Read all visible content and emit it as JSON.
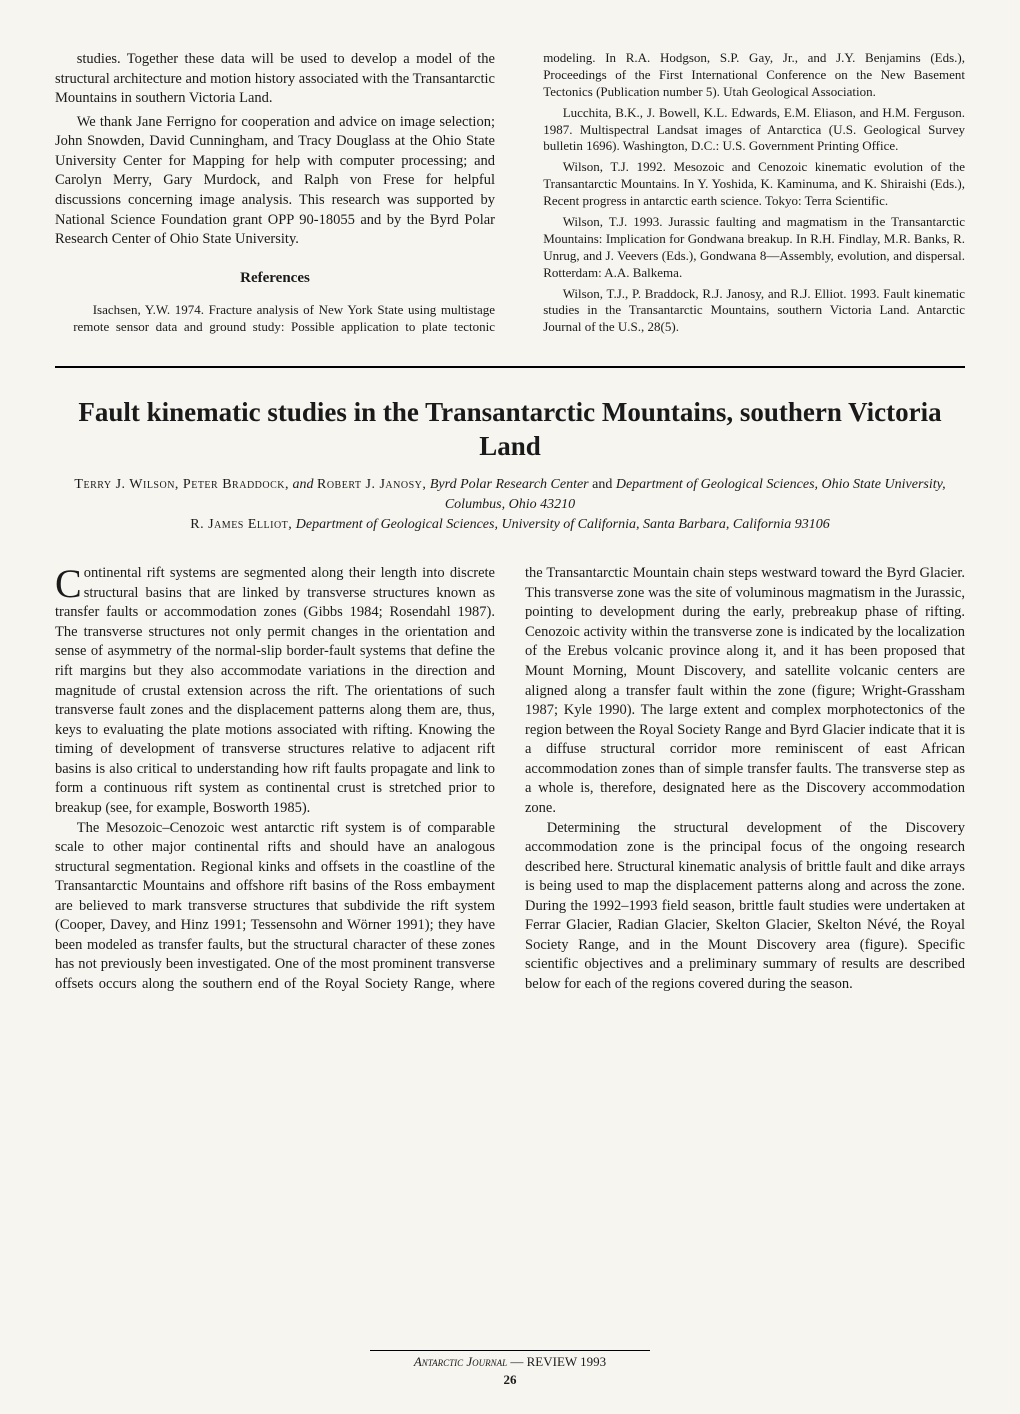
{
  "top_section": {
    "p1": "studies. Together these data will be used to develop a model of the structural architecture and motion history associated with the Transantarctic Mountains in southern Victoria Land.",
    "p2": "We thank Jane Ferrigno for cooperation and advice on image selection; John Snowden, David Cunningham, and Tracy Douglass at the Ohio State University Center for Mapping for help with computer processing; and Carolyn Merry, Gary Murdock, and Ralph von Frese for helpful discussions concerning image analysis. This research was supported by National Science Foundation grant OPP 90-18055 and by the Byrd Polar Research Center of Ohio State University.",
    "refs_heading": "References",
    "references": [
      "Isachsen, Y.W. 1974. Fracture analysis of New York State using multistage remote sensor data and ground study: Possible application to plate tectonic modeling. In R.A. Hodgson, S.P. Gay, Jr., and J.Y. Benjamins (Eds.), Proceedings of the First International Conference on the New Basement Tectonics (Publication number 5). Utah Geological Association.",
      "Lucchita, B.K., J. Bowell, K.L. Edwards, E.M. Eliason, and H.M. Ferguson. 1987. Multispectral Landsat images of Antarctica (U.S. Geological Survey bulletin 1696). Washington, D.C.: U.S. Government Printing Office.",
      "Wilson, T.J. 1992. Mesozoic and Cenozoic kinematic evolution of the Transantarctic Mountains. In Y. Yoshida, K. Kaminuma, and K. Shiraishi (Eds.), Recent progress in antarctic earth science. Tokyo: Terra Scientific.",
      "Wilson, T.J. 1993. Jurassic faulting and magmatism in the Transantarctic Mountains: Implication for Gondwana breakup. In R.H. Findlay, M.R. Banks, R. Unrug, and J. Veevers (Eds.), Gondwana 8—Assembly, evolution, and dispersal. Rotterdam: A.A. Balkema.",
      "Wilson, T.J., P. Braddock, R.J. Janosy, and R.J. Elliot. 1993. Fault kinematic studies in the Transantarctic Mountains, southern Victoria Land. Antarctic Journal of the U.S., 28(5)."
    ]
  },
  "article": {
    "title": "Fault kinematic studies in the Transantarctic Mountains, southern Victoria Land",
    "authors_line1_names": "Terry J. Wilson, Peter Braddock,",
    "authors_line1_and": " and ",
    "authors_line1_names2": "Robert J. Janosy,",
    "authors_line1_affil": " Byrd Polar Research Center ",
    "authors_line1_and2": "and",
    "authors_line1_affil2": " Department of Geological Sciences, Ohio State University, Columbus, Ohio 43210",
    "authors_line2_name": "R. James Elliot,",
    "authors_line2_affil": " Department of Geological Sciences, University of California, Santa Barbara, California 93106",
    "body": {
      "p1_dropcap": "C",
      "p1": "ontinental rift systems are segmented along their length into discrete structural basins that are linked by transverse structures known as transfer faults or accommodation zones (Gibbs 1984; Rosendahl 1987). The transverse structures not only permit changes in the orientation and sense of asymmetry of the normal-slip border-fault systems that define the rift margins but they also accommodate variations in the direction and magnitude of crustal extension across the rift. The orientations of such transverse fault zones and the displacement patterns along them are, thus, keys to evaluating the plate motions associated with rifting. Knowing the timing of development of transverse structures relative to adjacent rift basins is also critical to understanding how rift faults propagate and link to form a continuous rift system as continental crust is stretched prior to breakup (see, for example, Bosworth 1985).",
      "p2": "The Mesozoic–Cenozoic west antarctic rift system is of comparable scale to other major continental rifts and should have an analogous structural segmentation. Regional kinks and offsets in the coastline of the Transantarctic Mountains and offshore rift basins of the Ross embayment are believed to mark transverse structures that subdivide the rift system (Cooper, Davey, and Hinz 1991; Tessensohn and Wörner 1991); they have been modeled as transfer faults, but the structural character of these zones has not previously been investigated. One of the most prominent transverse offsets occurs along the southern end of the Royal Society Range, where the Transantarctic Mountain chain steps westward toward the Byrd Glacier. This transverse zone was the site of voluminous magmatism in the Jurassic, pointing to development during the early, prebreakup phase of rifting. Cenozoic activity within the transverse zone is indicated by the localization of the Erebus volcanic province along it, and it has been proposed that Mount Morning, Mount Discovery, and satellite volcanic centers are aligned along a transfer fault within the zone (figure; Wright-Grassham 1987; Kyle 1990). The large extent and complex morphotectonics of the region between the Royal Society Range and Byrd Glacier indicate that it is a diffuse structural corridor more reminiscent of east African accommodation zones than of simple transfer faults. The transverse step as a whole is, therefore, designated here as the Discovery accommodation zone.",
      "p3": "Determining the structural development of the Discovery accommodation zone is the principal focus of the ongoing research described here. Structural kinematic analysis of brittle fault and dike arrays is being used to map the displacement patterns along and across the zone. During the 1992–1993 field season, brittle fault studies were undertaken at Ferrar Glacier, Radian Glacier, Skelton Glacier, Skelton Névé, the Royal Society Range, and in the Mount Discovery area (figure). Specific scientific objectives and a preliminary summary of results are described below for each of the regions covered during the season."
    }
  },
  "footer": {
    "journal": "Antarctic Journal",
    "rest": " — REVIEW 1993",
    "page": "26"
  }
}
